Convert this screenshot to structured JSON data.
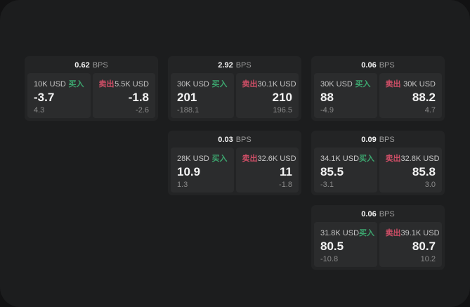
{
  "labels": {
    "bps_unit": "BPS",
    "buy": "买入",
    "sell": "卖出"
  },
  "colors": {
    "outer_bg": "#121213",
    "window_bg": "#1c1d1e",
    "card_bg": "#232425",
    "panel_bg": "#2b2c2d",
    "white": "#f4f4f4",
    "label_gray": "#c6c6c6",
    "unit_gray": "#9a9a9a",
    "small_gray": "#8b8b8b",
    "buy_green": "#3ca56e",
    "sell_red": "#ce4e66"
  },
  "cards": [
    {
      "row": 1,
      "col": 1,
      "bps": "0.62",
      "buy": {
        "notional": "10K USD",
        "price": "-3.7",
        "delta": "4.3"
      },
      "sell": {
        "notional": "5.5K USD",
        "price": "-1.8",
        "delta": "-2.6"
      }
    },
    {
      "row": 1,
      "col": 2,
      "bps": "2.92",
      "buy": {
        "notional": "30K USD",
        "price": "201",
        "delta": "-188.1"
      },
      "sell": {
        "notional": "30.1K USD",
        "price": "210",
        "delta": "196.5"
      }
    },
    {
      "row": 1,
      "col": 3,
      "bps": "0.06",
      "buy": {
        "notional": "30K USD",
        "price": "88",
        "delta": "-4.9"
      },
      "sell": {
        "notional": "30K USD",
        "price": "88.2",
        "delta": "4.7"
      }
    },
    {
      "row": 2,
      "col": 2,
      "bps": "0.03",
      "buy": {
        "notional": "28K USD",
        "price": "10.9",
        "delta": "1.3"
      },
      "sell": {
        "notional": "32.6K USD",
        "price": "11",
        "delta": "-1.8"
      }
    },
    {
      "row": 2,
      "col": 3,
      "bps": "0.09",
      "buy": {
        "notional": "34.1K USD",
        "price": "85.5",
        "delta": "-3.1"
      },
      "sell": {
        "notional": "32.8K USD",
        "price": "85.8",
        "delta": "3.0"
      }
    },
    {
      "row": 3,
      "col": 3,
      "bps": "0.06",
      "buy": {
        "notional": "31.8K USD",
        "price": "80.5",
        "delta": "-10.8"
      },
      "sell": {
        "notional": "39.1K USD",
        "price": "80.7",
        "delta": "10.2"
      }
    }
  ]
}
